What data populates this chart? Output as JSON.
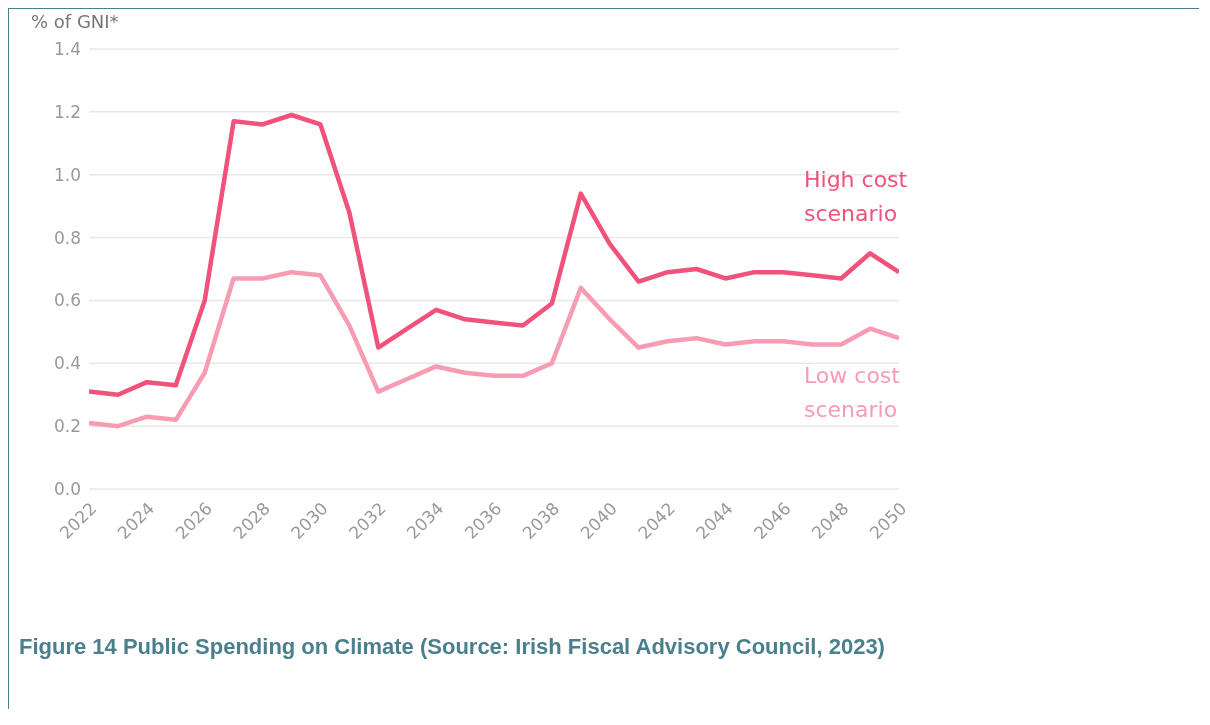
{
  "chart_data": {
    "type": "line",
    "title": "Figure 14 Public Spending on Climate (Source: Irish Fiscal Advisory Council, 2023)",
    "ylabel": "% of GNI*",
    "x": [
      2022,
      2023,
      2024,
      2025,
      2026,
      2027,
      2028,
      2029,
      2030,
      2031,
      2032,
      2033,
      2034,
      2035,
      2036,
      2037,
      2038,
      2039,
      2040,
      2041,
      2042,
      2043,
      2044,
      2045,
      2046,
      2047,
      2048,
      2049,
      2050
    ],
    "series": [
      {
        "name": "High cost scenario",
        "color": "#f0527b",
        "values": [
          0.31,
          0.3,
          0.34,
          0.33,
          0.6,
          1.17,
          1.16,
          1.19,
          1.16,
          0.88,
          0.45,
          0.51,
          0.57,
          0.54,
          0.53,
          0.52,
          0.59,
          0.94,
          0.78,
          0.66,
          0.69,
          0.7,
          0.67,
          0.69,
          0.69,
          0.68,
          0.67,
          0.75,
          0.69
        ]
      },
      {
        "name": "Low cost scenario",
        "color": "#f79cb3",
        "values": [
          0.21,
          0.2,
          0.23,
          0.22,
          0.37,
          0.67,
          0.67,
          0.69,
          0.68,
          0.52,
          0.31,
          0.35,
          0.39,
          0.37,
          0.36,
          0.36,
          0.4,
          0.64,
          0.54,
          0.45,
          0.47,
          0.48,
          0.46,
          0.47,
          0.47,
          0.46,
          0.46,
          0.51,
          0.48
        ]
      }
    ],
    "xlim": [
      2022,
      2050
    ],
    "xticks": [
      2022,
      2024,
      2026,
      2028,
      2030,
      2032,
      2034,
      2036,
      2038,
      2040,
      2042,
      2044,
      2046,
      2048,
      2050
    ],
    "ylim": [
      0,
      1.4
    ],
    "yticks": [
      {
        "value": 0,
        "label": "0.0"
      },
      {
        "value": 0.2,
        "label": "0.2"
      },
      {
        "value": 0.4,
        "label": "0.4"
      },
      {
        "value": 0.6,
        "label": "0.6"
      },
      {
        "value": 0.8,
        "label": "0.8"
      },
      {
        "value": 1.0,
        "label": "1.0"
      },
      {
        "value": 1.2,
        "label": "1.2"
      },
      {
        "value": 1.4,
        "label": "1.4"
      }
    ],
    "grid": "y",
    "legend": false,
    "marker": "none",
    "line_style": "solid"
  }
}
